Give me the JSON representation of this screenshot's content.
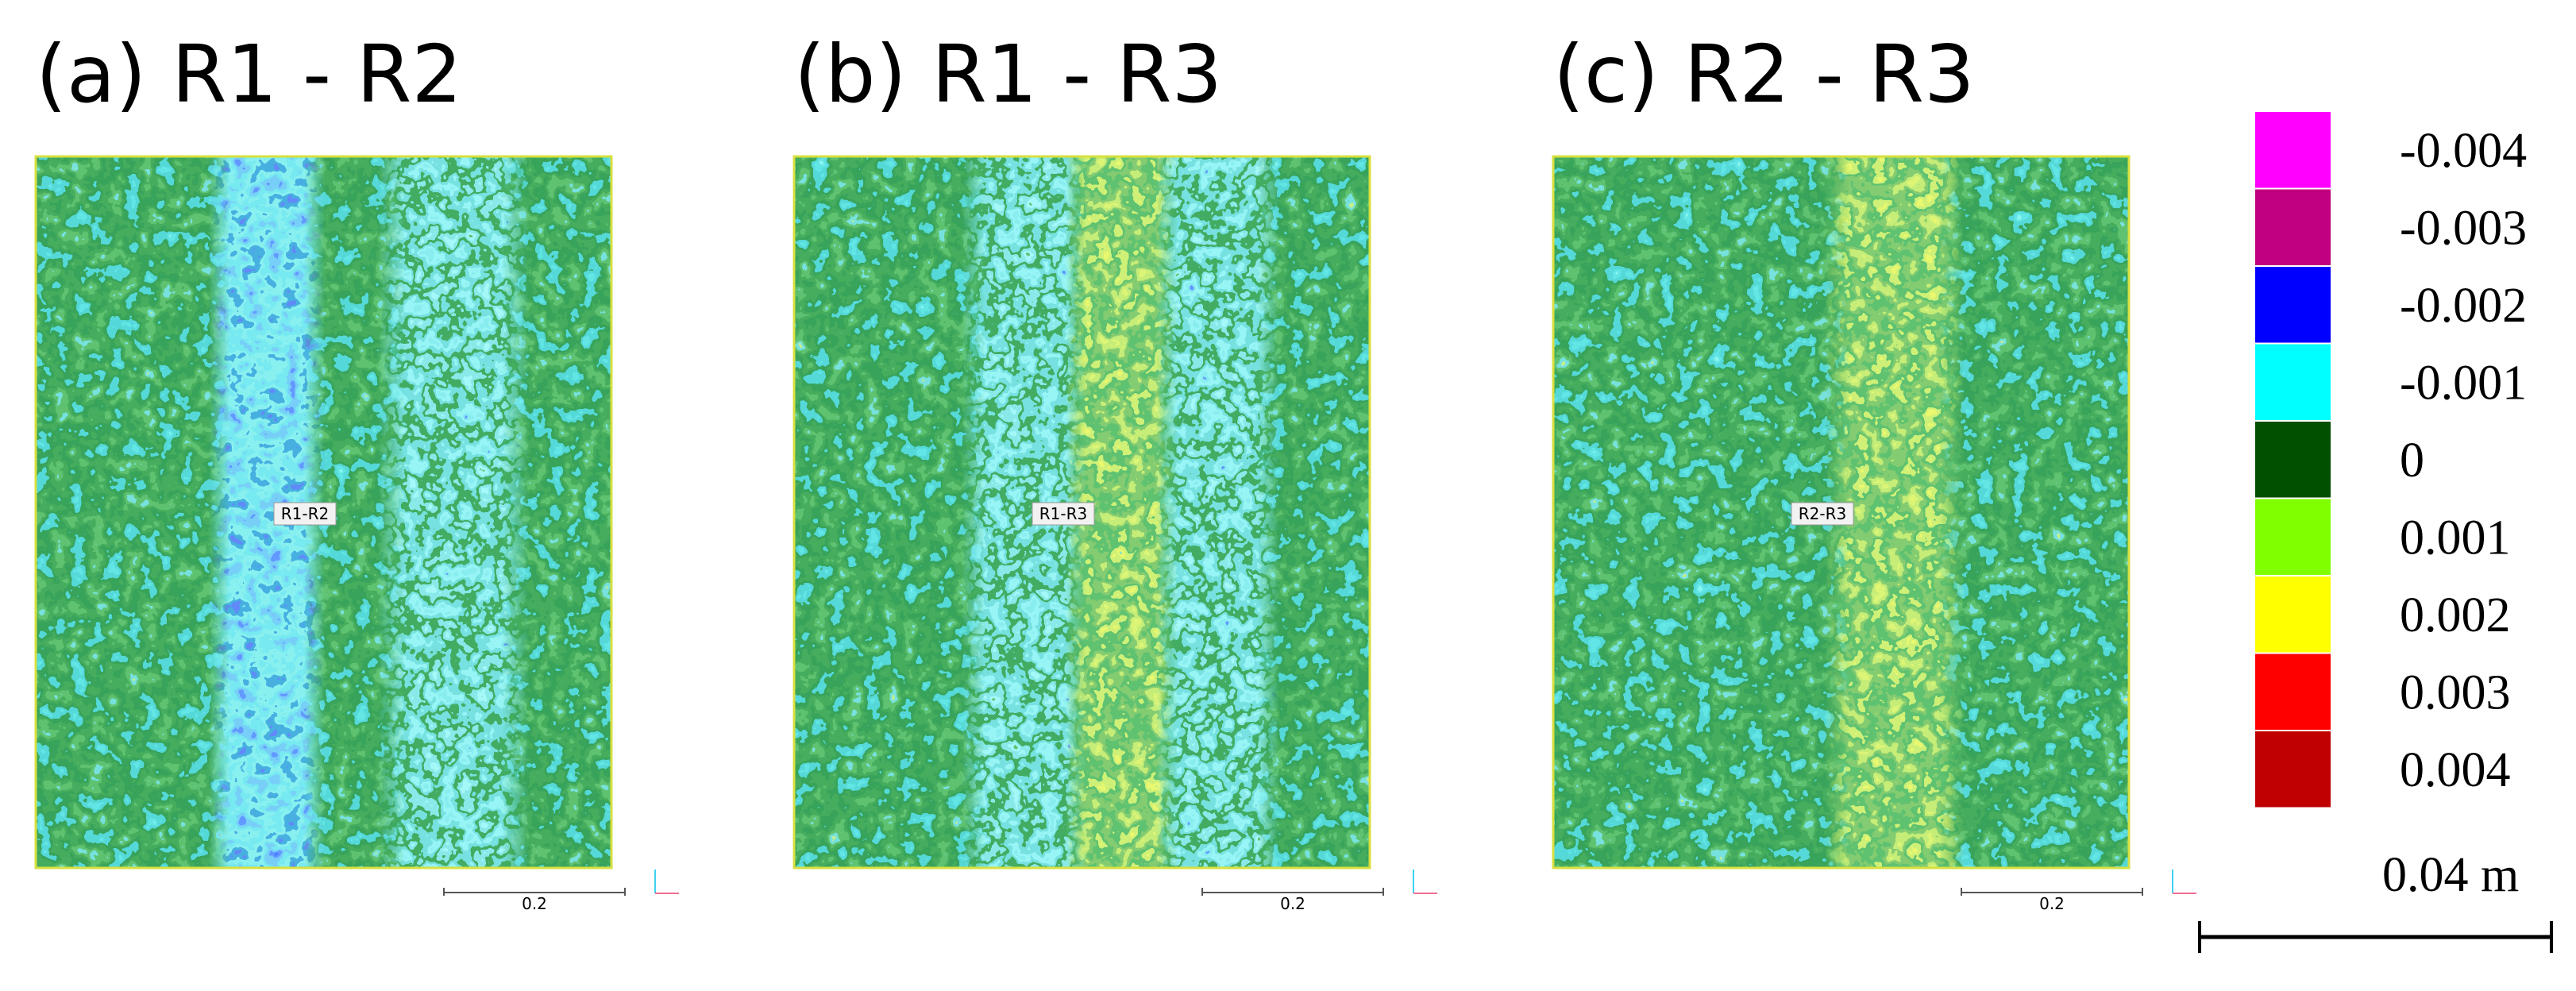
{
  "panels": [
    {
      "title": "(a) R1 - R2",
      "label": "R1-R2",
      "scale_label": "0.2"
    },
    {
      "title": "(b) R1 - R3",
      "label": "R1-R3",
      "scale_label": "0.2"
    },
    {
      "title": "(c) R2 - R3",
      "label": "R2-R3",
      "scale_label": "0.2"
    }
  ],
  "legend": {
    "entries": [
      {
        "label": "-0.004",
        "color": "#ff00ff"
      },
      {
        "label": "-0.003",
        "color": "#c0007f"
      },
      {
        "label": "-0.002",
        "color": "#0000ff"
      },
      {
        "label": "-0.001",
        "color": "#00ffff"
      },
      {
        "label": "0",
        "color": "#005000"
      },
      {
        "label": "0.001",
        "color": "#80ff00"
      },
      {
        "label": "0.002",
        "color": "#ffff00"
      },
      {
        "label": "0.003",
        "color": "#ff0000"
      },
      {
        "label": "0.004",
        "color": "#c00000"
      }
    ]
  },
  "scale_bar": "0.04 m"
}
